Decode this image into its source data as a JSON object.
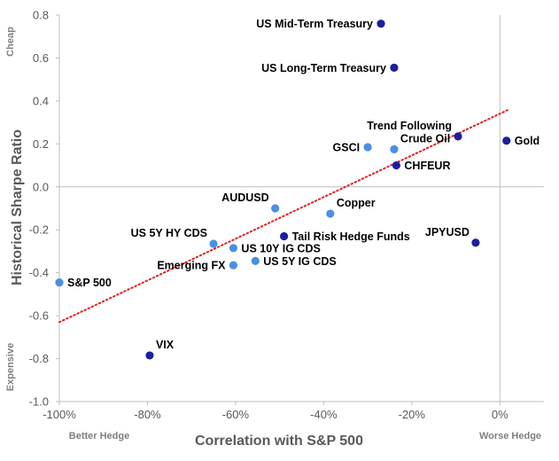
{
  "chart_data": {
    "type": "scatter",
    "title": "",
    "xlabel": "Correlation with S&P 500",
    "ylabel": "Historical Sharpe Ratio",
    "xlim": [
      -100,
      10
    ],
    "ylim": [
      -1.0,
      0.8
    ],
    "x_ticks": [
      -100,
      -80,
      -60,
      -40,
      -20,
      0
    ],
    "x_tick_labels": [
      "-100%",
      "-80%",
      "-60%",
      "-40%",
      "-20%",
      "0%"
    ],
    "y_ticks": [
      -1.0,
      -0.8,
      -0.6,
      -0.4,
      -0.2,
      0.0,
      0.2,
      0.4,
      0.6,
      0.8
    ],
    "y_tick_labels": [
      "-1.0",
      "-0.8",
      "-0.6",
      "-0.4",
      "-0.2",
      "0.0",
      "0.2",
      "0.4",
      "0.6",
      "0.8"
    ],
    "x_side_labels": {
      "left": "Better Hedge",
      "right": "Worse Hedge"
    },
    "y_side_labels": {
      "top": "Cheap",
      "bottom": "Expensive"
    },
    "reference_lines": {
      "x": 0,
      "y": 0
    },
    "trendline": {
      "style": "dotted",
      "color": "#e02020",
      "x": [
        -100,
        2
      ],
      "y": [
        -0.63,
        0.36
      ]
    },
    "colors": {
      "light": "#4a90e2",
      "dark": "#1c1f9e"
    },
    "points": [
      {
        "label": "US Mid-Term Treasury",
        "x": -27,
        "y": 0.76,
        "shade": "dark",
        "label_pos": "left"
      },
      {
        "label": "US Long-Term Treasury",
        "x": -24,
        "y": 0.555,
        "shade": "dark",
        "label_pos": "left"
      },
      {
        "label": "Trend Following",
        "x": -9.5,
        "y": 0.235,
        "shade": "dark",
        "label_pos": "top-left"
      },
      {
        "label": "Gold",
        "x": 1.5,
        "y": 0.215,
        "shade": "dark",
        "label_pos": "right"
      },
      {
        "label": "Crude Oil",
        "x": -24,
        "y": 0.175,
        "shade": "light",
        "label_pos": "top-right"
      },
      {
        "label": "GSCI",
        "x": -30,
        "y": 0.185,
        "shade": "light",
        "label_pos": "left"
      },
      {
        "label": "CHFEUR",
        "x": -23.5,
        "y": 0.1,
        "shade": "dark",
        "label_pos": "right"
      },
      {
        "label": "AUDUSD",
        "x": -51,
        "y": -0.1,
        "shade": "light",
        "label_pos": "top-left"
      },
      {
        "label": "Copper",
        "x": -38.5,
        "y": -0.125,
        "shade": "light",
        "label_pos": "top-right"
      },
      {
        "label": "JPYUSD",
        "x": -5.5,
        "y": -0.26,
        "shade": "dark",
        "label_pos": "top-left"
      },
      {
        "label": "Tail Risk Hedge Funds",
        "x": -49,
        "y": -0.23,
        "shade": "dark",
        "label_pos": "right"
      },
      {
        "label": "US 5Y HY CDS",
        "x": -65,
        "y": -0.265,
        "shade": "light",
        "label_pos": "top-left"
      },
      {
        "label": "US 10Y IG CDS",
        "x": -60.5,
        "y": -0.285,
        "shade": "light",
        "label_pos": "right"
      },
      {
        "label": "US 5Y IG CDS",
        "x": -55.5,
        "y": -0.345,
        "shade": "light",
        "label_pos": "right"
      },
      {
        "label": "Emerging FX",
        "x": -60.5,
        "y": -0.365,
        "shade": "light",
        "label_pos": "left"
      },
      {
        "label": "S&P 500",
        "x": -100,
        "y": -0.445,
        "shade": "light",
        "label_pos": "right"
      },
      {
        "label": "VIX",
        "x": -79.5,
        "y": -0.785,
        "shade": "dark",
        "label_pos": "top-right"
      }
    ]
  }
}
